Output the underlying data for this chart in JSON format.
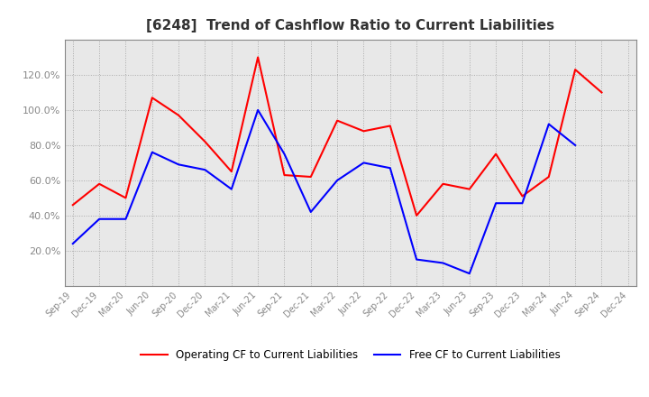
{
  "title": "[6248]  Trend of Cashflow Ratio to Current Liabilities",
  "x_labels": [
    "Sep-19",
    "Dec-19",
    "Mar-20",
    "Jun-20",
    "Sep-20",
    "Dec-20",
    "Mar-21",
    "Jun-21",
    "Sep-21",
    "Dec-21",
    "Mar-22",
    "Jun-22",
    "Sep-22",
    "Dec-22",
    "Mar-23",
    "Jun-23",
    "Sep-23",
    "Dec-23",
    "Mar-24",
    "Jun-24",
    "Sep-24",
    "Dec-24"
  ],
  "operating_cf": [
    46,
    58,
    50,
    107,
    97,
    82,
    65,
    130,
    63,
    62,
    94,
    88,
    91,
    40,
    58,
    55,
    75,
    51,
    62,
    123,
    110,
    null
  ],
  "free_cf": [
    24,
    38,
    38,
    76,
    69,
    66,
    55,
    100,
    75,
    42,
    60,
    70,
    67,
    15,
    13,
    7,
    47,
    47,
    92,
    80,
    null,
    null
  ],
  "operating_color": "#ff0000",
  "free_color": "#0000ff",
  "ylim": [
    0,
    140
  ],
  "yticks": [
    20,
    40,
    60,
    80,
    100,
    120
  ],
  "background_color": "#ffffff",
  "grid_color": "#aaaaaa",
  "title_fontsize": 11,
  "tick_color": "#888888",
  "legend_labels": [
    "Operating CF to Current Liabilities",
    "Free CF to Current Liabilities"
  ]
}
